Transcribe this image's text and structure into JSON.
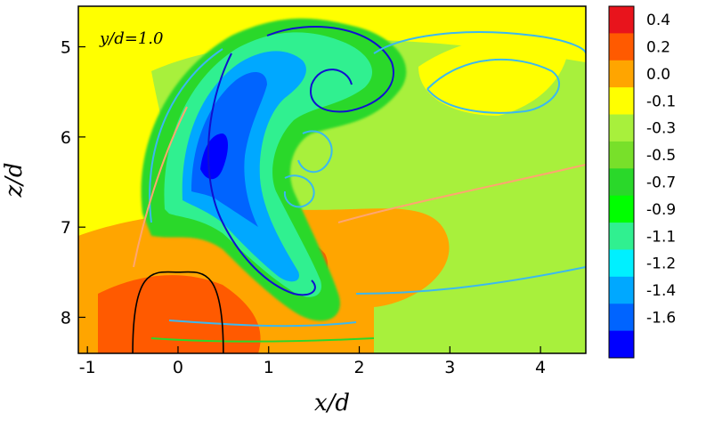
{
  "chart_data": {
    "type": "heatmap",
    "annotation": "y/d=1.0",
    "xlabel": "x/d",
    "ylabel": "z/d",
    "xlim": [
      -1.1,
      4.5
    ],
    "ylim": [
      8.4,
      4.55
    ],
    "x_ticks": [
      -1,
      0,
      1,
      2,
      3,
      4
    ],
    "y_ticks": [
      5,
      6,
      7,
      8
    ],
    "colorbar": {
      "levels": [
        "0.4",
        "0.2",
        "0.0",
        "-0.1",
        "-0.3",
        "-0.5",
        "-0.7",
        "-0.9",
        "-1.1",
        "-1.2",
        "-1.4",
        "-1.6"
      ],
      "colors": [
        "#e8141c",
        "#ff5a00",
        "#ffa500",
        "#ffff00",
        "#a8f03c",
        "#78e02a",
        "#2ad82a",
        "#00ff00",
        "#30f090",
        "#00f0ff",
        "#00a8ff",
        "#0064ff",
        "#0000ff"
      ]
    },
    "background_level_color": "#ffff00",
    "nozzle_outline": {
      "center_x": 0.0,
      "top_z": 7.5,
      "half_width": 0.5,
      "bottom_z": 8.4
    }
  }
}
